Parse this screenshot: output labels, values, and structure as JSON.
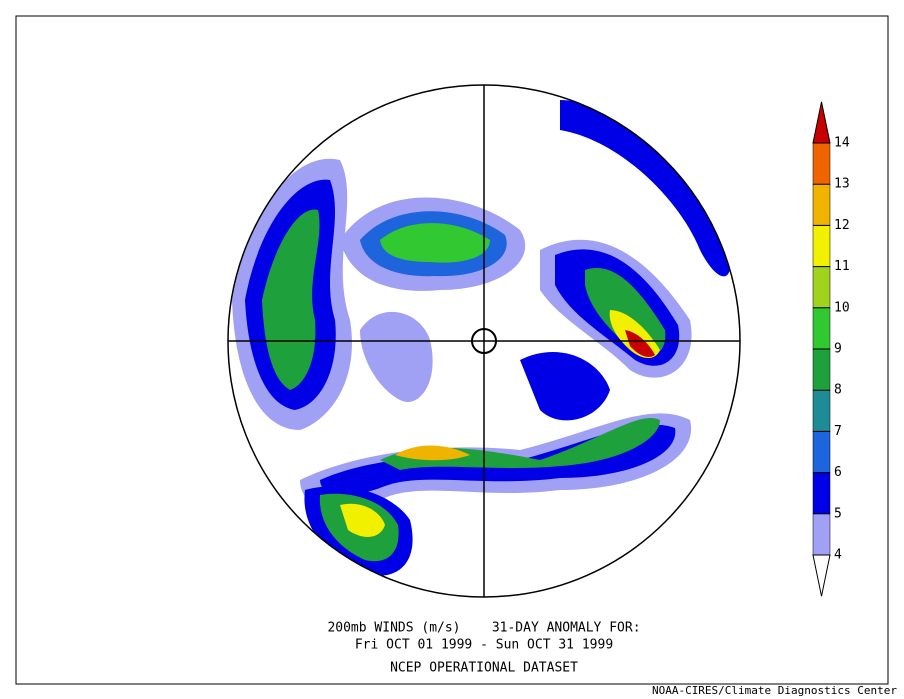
{
  "colorbar": {
    "levels": [
      4,
      5,
      6,
      7,
      8,
      9,
      10,
      11,
      12,
      13,
      14
    ],
    "colors": [
      "#ffffff",
      "#a0a0f5",
      "#0000e6",
      "#1e64dc",
      "#1e8c96",
      "#1ea03c",
      "#32c832",
      "#a0d21e",
      "#f0f000",
      "#f0b400",
      "#f06400",
      "#c80000"
    ]
  },
  "caption": {
    "line1": "200mb WINDS (m/s)    31-DAY ANOMALY FOR:",
    "line2": "Fri OCT 01 1999 - Sun OCT 31 1999",
    "line3": "NCEP OPERATIONAL DATASET"
  },
  "credit": "NOAA-CIRES/Climate Diagnostics Center"
}
